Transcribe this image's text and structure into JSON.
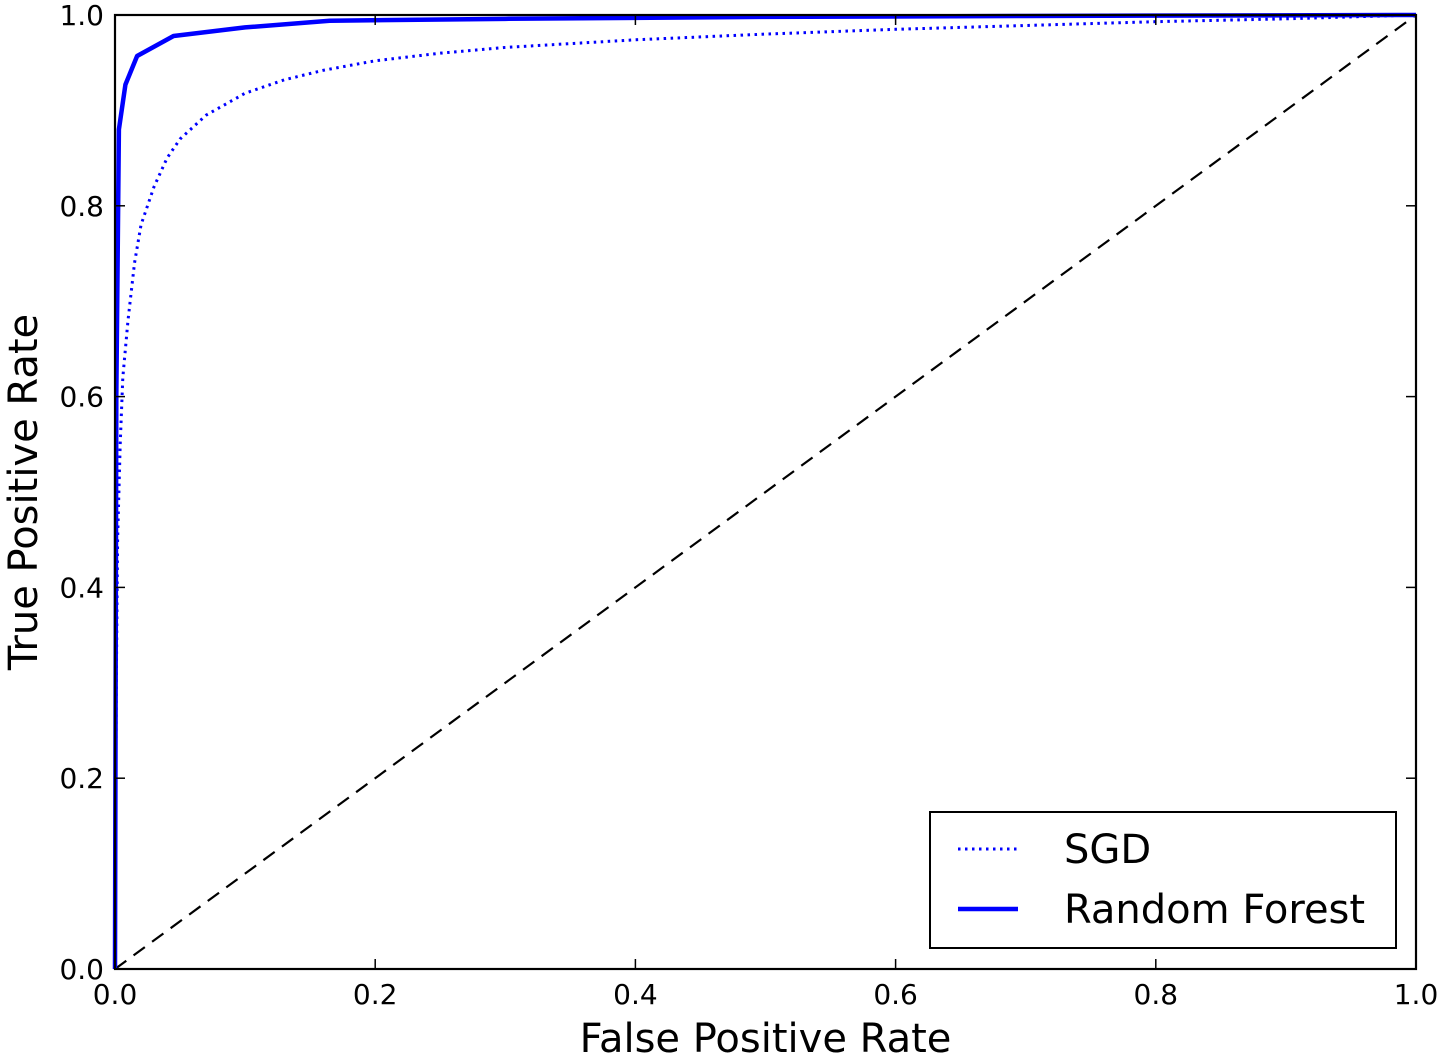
{
  "chart_data": {
    "type": "line",
    "title": "",
    "xlabel": "False Positive Rate",
    "ylabel": "True Positive Rate",
    "xlim": [
      0.0,
      1.0
    ],
    "ylim": [
      0.0,
      1.0
    ],
    "xticks": [
      "0.0",
      "0.2",
      "0.4",
      "0.6",
      "0.8",
      "1.0"
    ],
    "yticks": [
      "0.0",
      "0.2",
      "0.4",
      "0.6",
      "0.8",
      "1.0"
    ],
    "grid": false,
    "legend_position": "bottom-right",
    "series": [
      {
        "name": "SGD",
        "style": "dotted",
        "color": "#0000ff",
        "points": [
          [
            0.0,
            0.0
          ],
          [
            0.001,
            0.3
          ],
          [
            0.002,
            0.45
          ],
          [
            0.004,
            0.55
          ],
          [
            0.006,
            0.62
          ],
          [
            0.01,
            0.68
          ],
          [
            0.015,
            0.74
          ],
          [
            0.02,
            0.78
          ],
          [
            0.03,
            0.82
          ],
          [
            0.04,
            0.85
          ],
          [
            0.05,
            0.87
          ],
          [
            0.07,
            0.895
          ],
          [
            0.1,
            0.918
          ],
          [
            0.13,
            0.932
          ],
          [
            0.16,
            0.942
          ],
          [
            0.2,
            0.952
          ],
          [
            0.25,
            0.96
          ],
          [
            0.3,
            0.966
          ],
          [
            0.4,
            0.974
          ],
          [
            0.5,
            0.98
          ],
          [
            0.6,
            0.985
          ],
          [
            0.7,
            0.989
          ],
          [
            0.8,
            0.993
          ],
          [
            0.9,
            0.996
          ],
          [
            1.0,
            1.0
          ]
        ]
      },
      {
        "name": "Random Forest",
        "style": "solid",
        "color": "#0000ff",
        "points": [
          [
            0.0,
            0.0
          ],
          [
            0.001,
            0.6
          ],
          [
            0.003,
            0.88
          ],
          [
            0.008,
            0.927
          ],
          [
            0.017,
            0.957
          ],
          [
            0.045,
            0.978
          ],
          [
            0.1,
            0.987
          ],
          [
            0.165,
            0.994
          ],
          [
            0.3,
            0.996
          ],
          [
            0.5,
            0.998
          ],
          [
            0.7,
            0.999
          ],
          [
            1.0,
            1.0
          ]
        ]
      }
    ],
    "reference_line": {
      "style": "dashed",
      "color": "#000000",
      "points": [
        [
          0.0,
          0.0
        ],
        [
          1.0,
          1.0
        ]
      ]
    }
  }
}
